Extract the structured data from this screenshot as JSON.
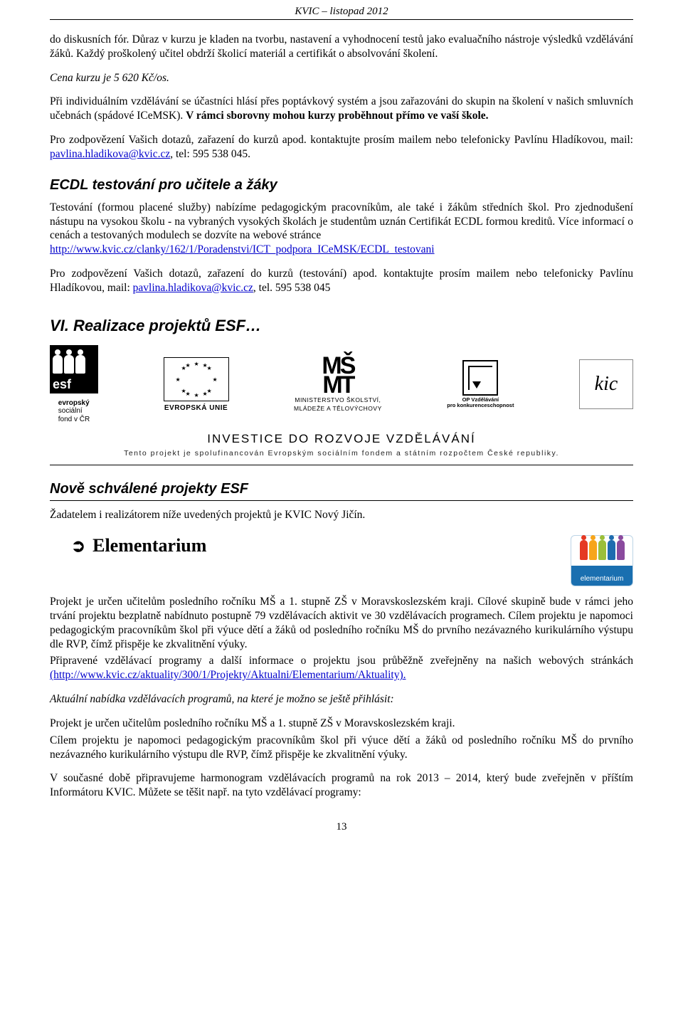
{
  "header": {
    "text": "KVIC – listopad 2012"
  },
  "intro": {
    "p1": "do diskusních fór. Důraz v kurzu je kladen na tvorbu, nastavení a vyhodnocení testů jako evaluačního nástroje výsledků vzdělávání žáků. Každý proškolený učitel obdrží školicí materiál a certifikát o absolvování školení.",
    "p2": "Cena kurzu je 5 620 Kč/os.",
    "p3a": "Při individuálním vzdělávání se účastníci hlásí přes poptávkový systém a jsou zařazováni do skupin na školení v našich smluvních učebnách (spádové ICeMSK). ",
    "p3b": "V rámci sborovny mohou kurzy proběhnout přímo ve vaší škole.",
    "p4a": "Pro zodpovězení Vašich dotazů, zařazení do kurzů apod. kontaktujte prosím mailem nebo telefonicky Pavlínu Hladíkovou, mail: ",
    "p4link": "pavlina.hladikova@kvic.cz",
    "p4b": ", tel: 595 538 045."
  },
  "ecdl": {
    "title": "ECDL testování pro učitele a žáky",
    "p1a": "Testování (formou placené služby) nabízíme pedagogickým pracovníkům, ale také i žákům středních škol. Pro zjednodušení nástupu na vysokou školu - na vybraných vysokých školách je studentům uznán Certifikát ECDL formou kreditů. Více informací o cenách a testovaných modulech se dozvíte na webové stránce ",
    "p1link": "http://www.kvic.cz/clanky/162/1/Poradenstvi/ICT_podpora_ICeMSK/ECDL_testovani",
    "p2a": "Pro zodpovězení Vašich dotazů, zařazení do kurzů (testování) apod. kontaktujte prosím mailem nebo telefonicky Pavlínu Hladíkovou, mail: ",
    "p2link": "pavlina.hladikova@kvic.cz",
    "p2b": ", tel. 595 538 045"
  },
  "section_vi": {
    "title": "VI.   Realizace projektů ESF…"
  },
  "banner": {
    "esf_line1": "evropský",
    "esf_line2": "sociální",
    "esf_line3": "fond v ČR",
    "eu_label": "EVROPSKÁ UNIE",
    "msmt_line1": "MINISTERSTVO ŠKOLSTVÍ,",
    "msmt_line2": "MLÁDEŽE A TĚLOVÝCHOVY",
    "op_line1": "OP Vzdělávání",
    "op_line2": "pro konkurenceschopnost",
    "title": "INVESTICE DO ROZVOJE VZDĚLÁVÁNÍ",
    "sub": "Tento projekt je spolufinancován Evropským sociálním fondem a státním rozpočtem České republiky."
  },
  "approved": {
    "title": "Nově schválené projekty ESF",
    "p1": "Žadatelem i realizátorem níže uvedených projektů je KVIC Nový Jičín."
  },
  "elementarium": {
    "title": "Elementarium",
    "logo_label": "elementarium",
    "colors": [
      "#e53923",
      "#f7a51b",
      "#9bbf3a",
      "#1f6caf",
      "#8a4a9e"
    ],
    "p1": "Projekt je určen učitelům posledního ročníku MŠ a 1. stupně ZŠ v Moravskoslezském kraji. Cílové skupině bude v rámci jeho trvání projektu bezplatně nabídnuto postupně 79 vzdělávacích aktivit ve 30 vzdělávacích programech. Cílem projektu je napomoci pedagogickým pracovníkům škol při výuce dětí a žáků od posledního ročníku MŠ do prvního nezávazného kurikulárního výstupu dle RVP, čímž přispěje ke zkvalitnění výuky.",
    "p2a": "Připravené vzdělávací programy a další informace o projektu jsou průběžně zveřejněny na našich webových stránkách ",
    "p2link": "(http://www.kvic.cz/aktuality/300/1/Projekty/Aktualni/Elementarium/Aktuality).",
    "p3": "Aktuální nabídka vzdělávacích programů, na které je možno se ještě přihlásit:",
    "p4": "Projekt je určen učitelům posledního ročníku MŠ a 1. stupně ZŠ v Moravskoslezském kraji.",
    "p5": "Cílem projektu je napomoci pedagogickým pracovníkům škol při výuce dětí a žáků od posledního ročníku MŠ do prvního nezávazného kurikulárního výstupu dle RVP, čímž přispěje ke zkvalitnění výuky.",
    "p6": "V současné době připravujeme harmonogram vzdělávacích programů na rok 2013 – 2014, který bude zveřejněn v příštím Informátoru KVIC. Můžete se těšit např. na tyto vzdělávací programy:"
  },
  "footer": {
    "page": "13"
  }
}
